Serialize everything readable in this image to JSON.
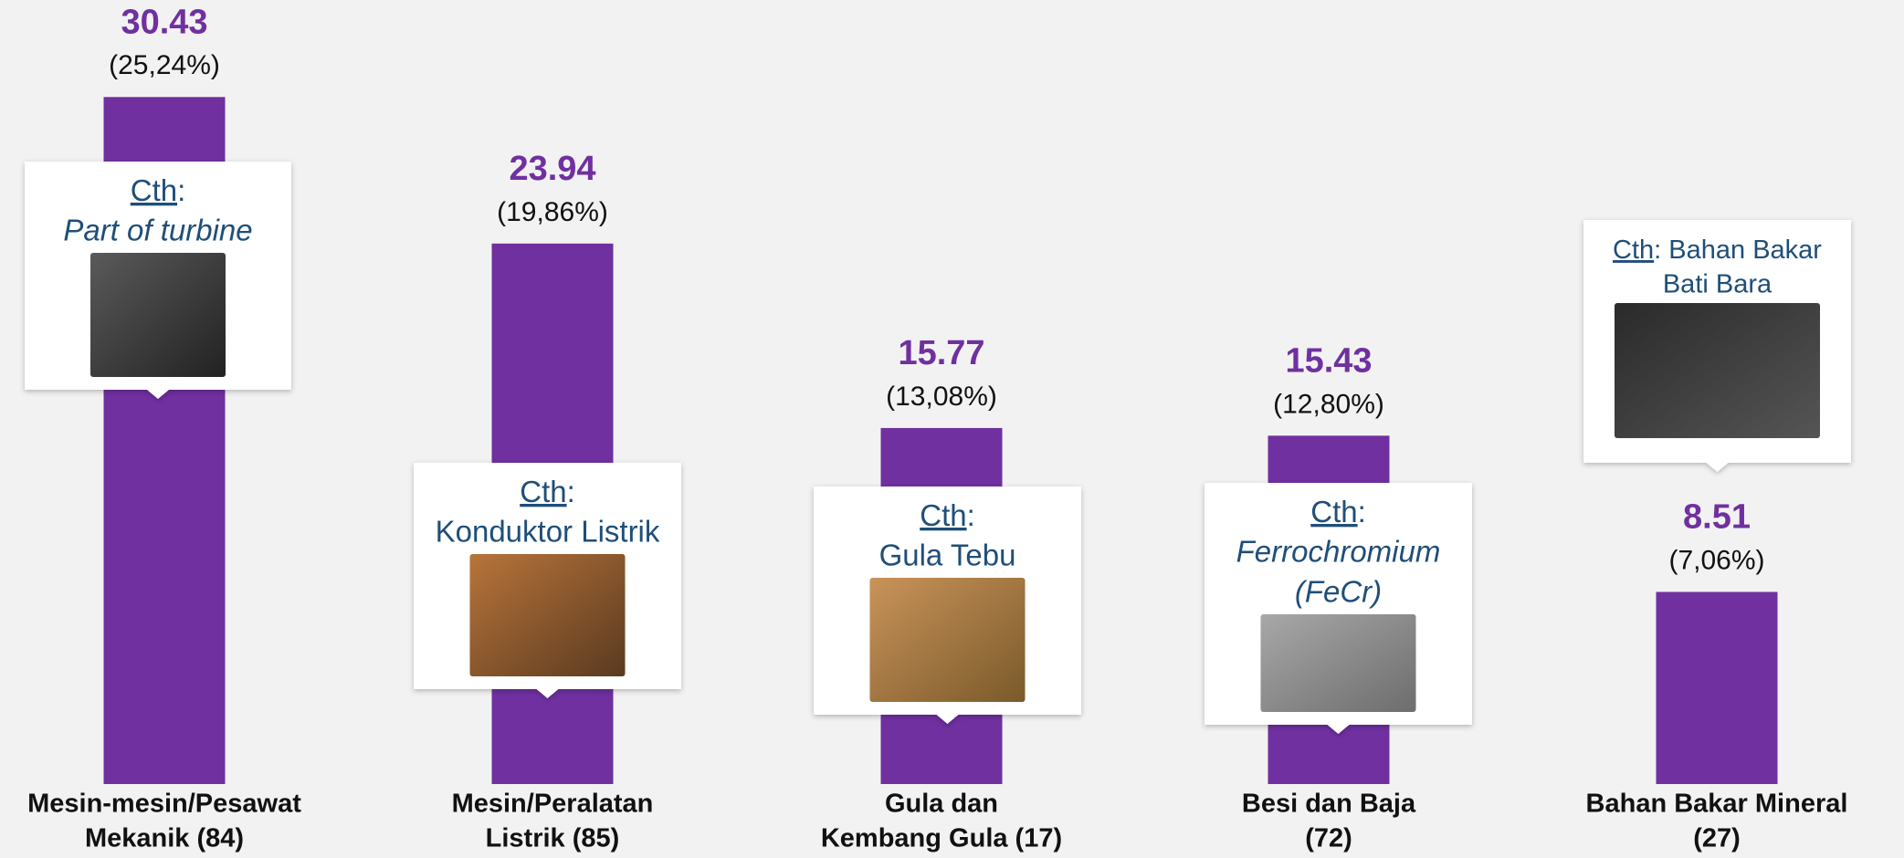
{
  "chart_data": {
    "type": "bar",
    "categories": [
      [
        "Mesin-mesin/Pesawat",
        "Mekanik (84)"
      ],
      [
        "Mesin/Peralatan",
        "Listrik (85)"
      ],
      [
        "Gula dan",
        "Kembang Gula (17)"
      ],
      [
        "Besi dan Baja",
        "(72)"
      ],
      [
        "Bahan Bakar Mineral",
        "(27)"
      ]
    ],
    "values": [
      30.43,
      23.94,
      15.77,
      15.43,
      8.51
    ],
    "percent_labels": [
      "(25,24%)",
      "(19,86%)",
      "(13,08%)",
      "(12,80%)",
      "(7,06%)"
    ],
    "color": "#7030a0",
    "ylim": [
      0,
      34
    ],
    "callouts": [
      {
        "link": "Cth",
        "after": ":",
        "lines": [
          "Part of turbine"
        ],
        "italic": true
      },
      {
        "link": "Cth",
        "after": ":",
        "lines": [
          "Konduktor Listrik"
        ],
        "italic": false
      },
      {
        "link": "Cth",
        "after": ":",
        "lines": [
          "Gula Tebu"
        ],
        "italic": false
      },
      {
        "link": "Cth",
        "after": ":",
        "lines": [
          "Ferrochromium",
          "(FeCr)"
        ],
        "italic": true
      },
      {
        "link": "Cth",
        "after": ": Bahan Bakar",
        "lines": [
          "Bati Bara"
        ],
        "italic": false
      }
    ]
  }
}
